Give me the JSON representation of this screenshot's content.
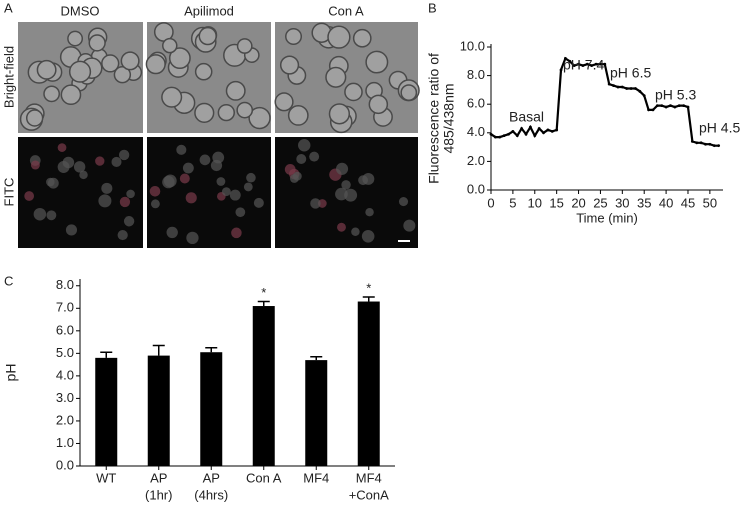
{
  "figure": {
    "panel_labels": [
      "A",
      "B",
      "C"
    ],
    "columns": [
      "DMSO",
      "Apilimod",
      "Con A"
    ],
    "rows": [
      "Bright-field",
      "FITC"
    ]
  },
  "chart_data": [
    {
      "type": "line",
      "ylabel": [
        "Fluorescence ratio of",
        "485/438nm"
      ],
      "xlabel": "Time (min)",
      "x": [
        0,
        1,
        2,
        3,
        4,
        5,
        6,
        7,
        8,
        9,
        10,
        11,
        12,
        13,
        14,
        15,
        16,
        17,
        18,
        19,
        20,
        21,
        22,
        23,
        24,
        25,
        26,
        27,
        28,
        29,
        30,
        31,
        32,
        33,
        34,
        35,
        36,
        37,
        38,
        39,
        40,
        41,
        42,
        43,
        44,
        45,
        46,
        47,
        48,
        49,
        50,
        51,
        52
      ],
      "values": [
        3.9,
        3.7,
        3.7,
        3.8,
        3.9,
        4.1,
        3.8,
        4.3,
        3.9,
        4.4,
        3.8,
        4.3,
        4.0,
        4.2,
        4.1,
        4.2,
        8.4,
        9.2,
        9.0,
        8.7,
        8.8,
        8.7,
        8.8,
        8.7,
        8.8,
        8.8,
        8.8,
        7.4,
        7.3,
        7.2,
        7.2,
        7.1,
        7.1,
        7.1,
        6.9,
        6.6,
        5.6,
        5.6,
        5.9,
        5.9,
        5.8,
        5.9,
        5.8,
        5.9,
        5.9,
        5.8,
        3.4,
        3.3,
        3.3,
        3.2,
        3.2,
        3.1,
        3.1
      ],
      "color": "#000000",
      "annotations": [
        "Basal",
        "pH 7.4",
        "pH 6.5",
        "pH 5.3",
        "pH 4.5"
      ],
      "xlim": [
        0,
        53
      ],
      "xticks": [
        0,
        5,
        10,
        15,
        20,
        25,
        30,
        35,
        40,
        45,
        50
      ],
      "ylim": [
        0,
        10
      ],
      "yticks": [
        {
          "value": 0,
          "label": "0.0"
        },
        {
          "value": 2,
          "label": "2.0"
        },
        {
          "value": 4,
          "label": "4.0"
        },
        {
          "value": 6,
          "label": "6.0"
        },
        {
          "value": 8,
          "label": "8.0"
        },
        {
          "value": 10,
          "label": "10.0"
        }
      ]
    },
    {
      "type": "bar",
      "ylabel": "pH",
      "categories": [
        [
          "WT"
        ],
        [
          "AP",
          "(1hr)"
        ],
        [
          "AP",
          "(4hrs)"
        ],
        [
          "Con A"
        ],
        [
          "MF4"
        ],
        [
          "MF4",
          "+ConA"
        ]
      ],
      "values": [
        4.8,
        4.9,
        5.05,
        7.1,
        4.7,
        7.3
      ],
      "errors": [
        0.25,
        0.45,
        0.2,
        0.2,
        0.15,
        0.2
      ],
      "significance": [
        null,
        null,
        null,
        "*",
        null,
        "*"
      ],
      "color": "#000000",
      "ylim": [
        0,
        8.3
      ],
      "yticks": [
        {
          "value": 0,
          "label": "0.0"
        },
        {
          "value": 1,
          "label": "1.0"
        },
        {
          "value": 2,
          "label": "2.0"
        },
        {
          "value": 3,
          "label": "3.0"
        },
        {
          "value": 4,
          "label": "4.0"
        },
        {
          "value": 5,
          "label": "5.0"
        },
        {
          "value": 6,
          "label": "6.0"
        },
        {
          "value": 7,
          "label": "7.0"
        },
        {
          "value": 8,
          "label": "8.0"
        }
      ]
    }
  ]
}
